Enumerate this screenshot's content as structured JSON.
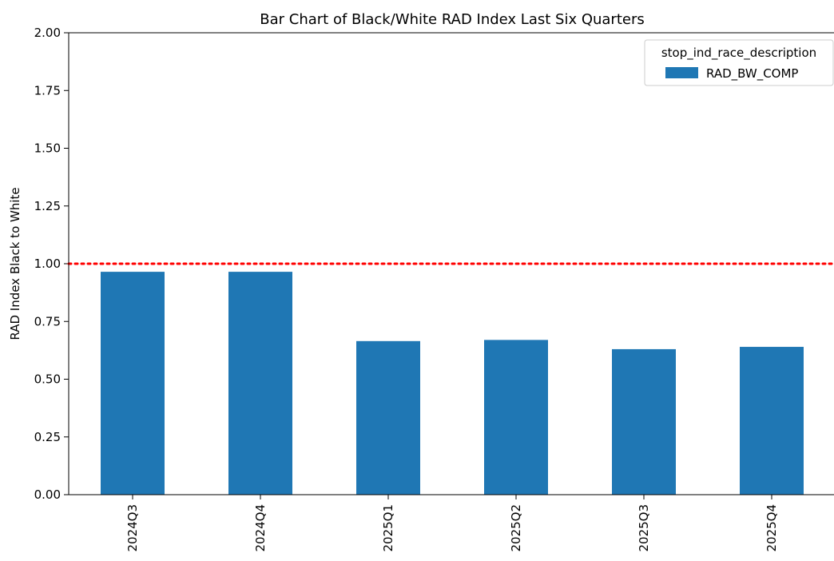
{
  "chart_data": {
    "type": "bar",
    "title": "Bar Chart of Black/White RAD Index Last Six Quarters",
    "xlabel": "",
    "ylabel": "RAD Index Black to White",
    "categories": [
      "2024Q3",
      "2024Q4",
      "2025Q1",
      "2025Q2",
      "2025Q3",
      "2025Q4"
    ],
    "series": [
      {
        "name": "RAD_BW_COMP",
        "values": [
          0.965,
          0.965,
          0.665,
          0.67,
          0.63,
          0.64
        ],
        "color": "#1f77b4"
      }
    ],
    "ylim": [
      0,
      2.0
    ],
    "yticks": [
      "0.00",
      "0.25",
      "0.50",
      "0.75",
      "1.00",
      "1.25",
      "1.50",
      "1.75",
      "2.00"
    ],
    "reference_line": {
      "y": 1.0,
      "color": "#ff0000",
      "style": "dotted"
    },
    "legend": {
      "title": "stop_ind_race_description",
      "placement": "top-right"
    },
    "grid": false
  }
}
